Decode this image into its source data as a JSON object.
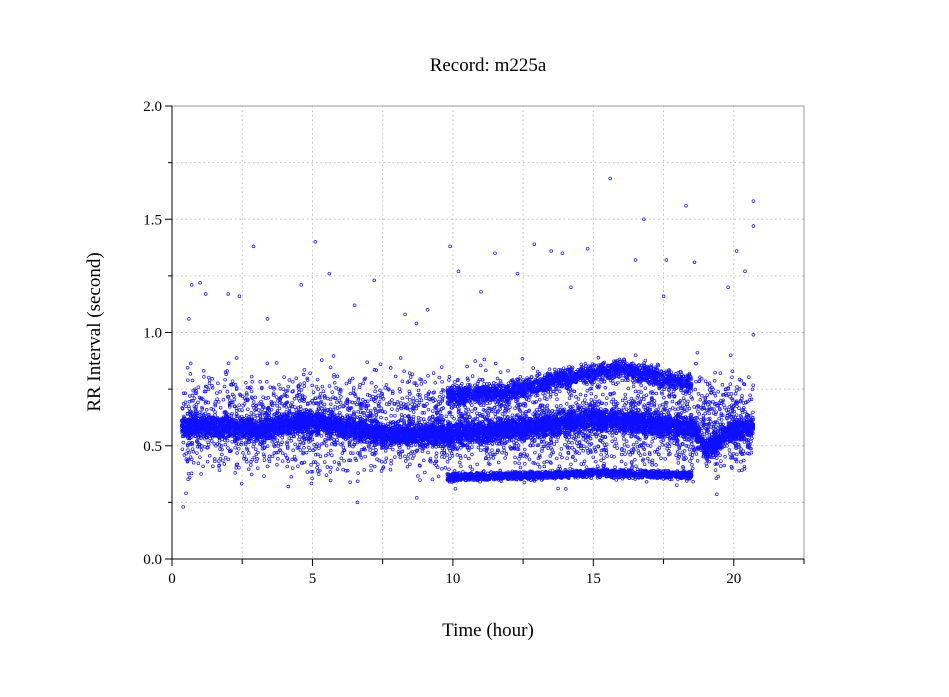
{
  "chart_data": {
    "type": "scatter",
    "title": "Record:  m225a",
    "xlabel": "Time (hour)",
    "ylabel": "RR Interval (second)",
    "xlim": [
      0,
      22.5
    ],
    "ylim": [
      0,
      2.0
    ],
    "xticks_major": [
      0,
      5,
      10,
      15,
      20
    ],
    "xticks_minor": [
      2.5,
      7.5,
      12.5,
      17.5,
      22.5
    ],
    "xtick_labels": [
      "0",
      "5",
      "10",
      "15",
      "20"
    ],
    "yticks": [
      0,
      0.5,
      1.0,
      1.5,
      2.0
    ],
    "ytick_labels": [
      "0.0",
      "0.5",
      "1.0",
      "1.5",
      "2.0"
    ],
    "grid": true,
    "marker_color": "#1010ff",
    "series": [
      {
        "x_range": [
          0.35,
          20.7
        ],
        "points": [
          [
            0.4,
            0.23
          ],
          [
            0.5,
            0.29
          ],
          [
            0.6,
            1.06
          ],
          [
            0.7,
            1.21
          ],
          [
            1.0,
            1.22
          ],
          [
            1.2,
            1.17
          ],
          [
            2.0,
            1.17
          ],
          [
            2.4,
            1.16
          ],
          [
            2.9,
            1.38
          ],
          [
            3.4,
            1.06
          ],
          [
            4.6,
            1.21
          ],
          [
            5.1,
            1.4
          ],
          [
            5.6,
            1.26
          ],
          [
            6.5,
            1.12
          ],
          [
            6.6,
            0.25
          ],
          [
            7.2,
            1.23
          ],
          [
            8.3,
            1.08
          ],
          [
            9.1,
            1.1
          ],
          [
            9.9,
            1.38
          ],
          [
            10.2,
            1.27
          ],
          [
            11.5,
            1.35
          ],
          [
            12.3,
            1.26
          ],
          [
            12.9,
            1.39
          ],
          [
            13.5,
            1.36
          ],
          [
            13.9,
            1.35
          ],
          [
            14.8,
            1.37
          ],
          [
            15.6,
            1.68
          ],
          [
            16.5,
            1.32
          ],
          [
            16.8,
            1.5
          ],
          [
            17.6,
            1.32
          ],
          [
            18.3,
            1.56
          ],
          [
            18.6,
            1.31
          ],
          [
            19.8,
            1.2
          ],
          [
            20.1,
            1.36
          ],
          [
            20.4,
            1.27
          ],
          [
            20.7,
            1.58
          ],
          [
            20.7,
            1.47
          ],
          [
            20.7,
            0.99
          ],
          [
            17.5,
            1.16
          ],
          [
            14.2,
            1.2
          ],
          [
            11.0,
            1.18
          ],
          [
            8.7,
            1.04
          ]
        ],
        "bands": [
          {
            "x": [
              0.35,
              20.7
            ],
            "y_center": [
              [
                0.35,
                0.59
              ],
              [
                3.0,
                0.57
              ],
              [
                5.0,
                0.61
              ],
              [
                7.5,
                0.55
              ],
              [
                10.0,
                0.55
              ],
              [
                12.5,
                0.58
              ],
              [
                15.0,
                0.62
              ],
              [
                17.5,
                0.59
              ],
              [
                18.6,
                0.58
              ],
              [
                19.0,
                0.48
              ],
              [
                20.0,
                0.57
              ],
              [
                20.7,
                0.58
              ]
            ],
            "spread": 0.04,
            "count": 7000
          },
          {
            "x": [
              9.8,
              18.5
            ],
            "y_center": [
              [
                9.8,
                0.36
              ],
              [
                13.0,
                0.37
              ],
              [
                15.0,
                0.38
              ],
              [
                18.5,
                0.37
              ]
            ],
            "spread": 0.015,
            "count": 1800
          },
          {
            "x": [
              9.8,
              18.5
            ],
            "y_center": [
              [
                9.8,
                0.72
              ],
              [
                12.0,
                0.74
              ],
              [
                14.0,
                0.8
              ],
              [
                16.0,
                0.84
              ],
              [
                18.5,
                0.77
              ]
            ],
            "spread": 0.035,
            "count": 2000
          },
          {
            "x": [
              0.35,
              20.7
            ],
            "y_center": [
              [
                0.35,
                0.6
              ],
              [
                20.7,
                0.6
              ]
            ],
            "spread": 0.18,
            "count": 3500
          }
        ]
      }
    ]
  }
}
